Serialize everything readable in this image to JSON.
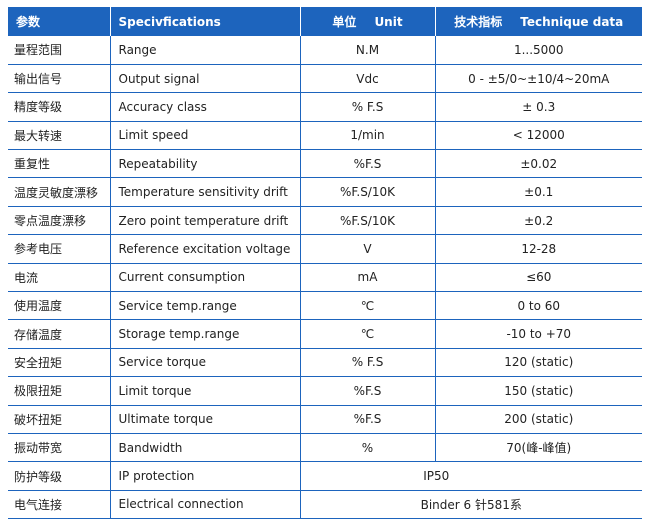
{
  "header": {
    "col_cn": "参数",
    "col_en": "Specivfications",
    "col_unit_cn": "单位",
    "col_unit_en": "Unit",
    "col_value_cn": "技术指标",
    "col_value_en": "Technique data"
  },
  "rows": [
    {
      "cn": "量程范围",
      "en": "Range",
      "unit": "N.M",
      "value": "1...5000"
    },
    {
      "cn": "输出信号",
      "en": "Output signal",
      "unit": "Vdc",
      "value": "0 - ±5/0~±10/4~20mA"
    },
    {
      "cn": "精度等级",
      "en": "Accuracy class",
      "unit": "% F.S",
      "value": "± 0.3"
    },
    {
      "cn": "最大转速",
      "en": "Limit speed",
      "unit": "1/min",
      "value": "< 12000"
    },
    {
      "cn": "重复性",
      "en": "Repeatability",
      "unit": "%F.S",
      "value": "±0.02"
    },
    {
      "cn": "温度灵敏度漂移",
      "en": "Temperature sensitivity drift",
      "unit": "%F.S/10K",
      "value": "±0.1"
    },
    {
      "cn": "零点温度漂移",
      "en": "Zero point temperature drift",
      "unit": "%F.S/10K",
      "value": "±0.2"
    },
    {
      "cn": "参考电压",
      "en": "Reference excitation voltage",
      "unit": "V",
      "value": "12-28"
    },
    {
      "cn": "电流",
      "en": "Current consumption",
      "unit": "mA",
      "value": "≤60"
    },
    {
      "cn": "使用温度",
      "en": "Service temp.range",
      "unit": "℃",
      "value": "0 to 60"
    },
    {
      "cn": "存储温度",
      "en": "Storage temp.range",
      "unit": "℃",
      "value": "-10 to +70"
    },
    {
      "cn": "安全扭矩",
      "en": "Service torque",
      "unit": "% F.S",
      "value": "120 (static)"
    },
    {
      "cn": "极限扭矩",
      "en": "Limit torque",
      "unit": "%F.S",
      "value": "150 (static)"
    },
    {
      "cn": "破坏扭矩",
      "en": "Ultimate torque",
      "unit": "%F.S",
      "value": "200 (static)"
    },
    {
      "cn": "振动带宽",
      "en": "Bandwidth",
      "unit": "%",
      "value": "70(峰-峰值)"
    }
  ],
  "span_rows": [
    {
      "cn": "防护等级",
      "en": "IP protection",
      "value": "IP50"
    },
    {
      "cn": "电气连接",
      "en": "Electrical connection",
      "value": "Binder 6 针581系"
    }
  ],
  "colors": {
    "header_bg": "#1d64bd",
    "header_text": "#ffffff",
    "grid": "#1d64bd"
  }
}
